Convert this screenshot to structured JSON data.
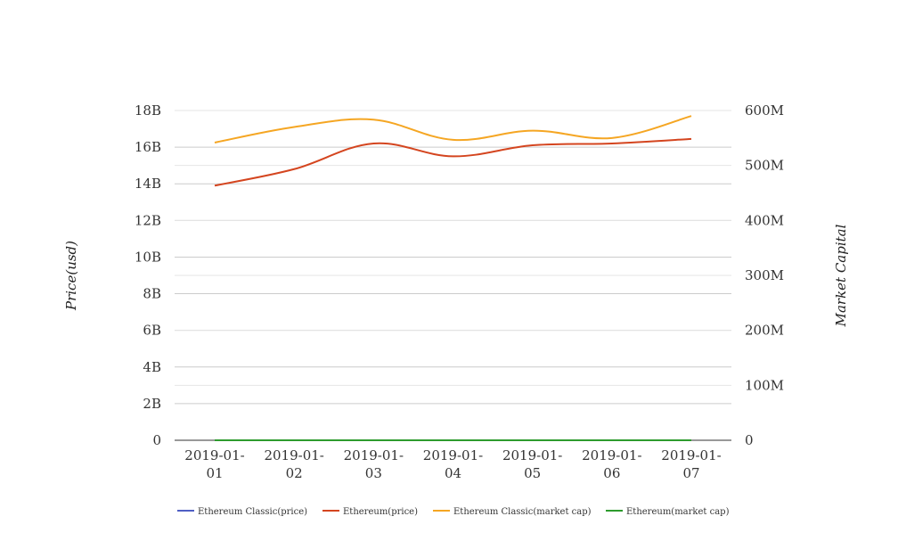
{
  "chart_data": {
    "type": "line",
    "categories": [
      "2019-01-01",
      "2019-01-02",
      "2019-01-03",
      "2019-01-04",
      "2019-01-05",
      "2019-01-06",
      "2019-01-07"
    ],
    "category_lines": [
      [
        "2019-01-",
        "01"
      ],
      [
        "2019-01-",
        "02"
      ],
      [
        "2019-01-",
        "03"
      ],
      [
        "2019-01-",
        "04"
      ],
      [
        "2019-01-",
        "05"
      ],
      [
        "2019-01-",
        "06"
      ],
      [
        "2019-01-",
        "07"
      ]
    ],
    "left_axis": {
      "label": "Price(usd)",
      "ticks": [
        "0",
        "2B",
        "4B",
        "6B",
        "8B",
        "10B",
        "12B",
        "14B",
        "16B",
        "18B"
      ],
      "ylim": [
        0,
        18000000000
      ]
    },
    "right_axis": {
      "label": "Market Capital",
      "ticks": [
        "0",
        "100M",
        "200M",
        "300M",
        "400M",
        "500M",
        "600M"
      ],
      "ylim": [
        0,
        600000000
      ]
    },
    "series": [
      {
        "name": "Ethereum Classic(price)",
        "axis": "right",
        "color": "#4f5fc4",
        "values": [
          5.2,
          5.5,
          5.1,
          4.6,
          4.9,
          4.8,
          5.0
        ]
      },
      {
        "name": "Ethereum(price)",
        "axis": "left",
        "color": "#d4451f",
        "values": [
          13900000000,
          14800000000,
          16200000000,
          15500000000,
          16100000000,
          16200000000,
          16450000000
        ]
      },
      {
        "name": "Ethereum Classic(market cap)",
        "axis": "left",
        "color": "#f5a623",
        "values": [
          16250000000,
          17100000000,
          17500000000,
          16400000000,
          16900000000,
          16500000000,
          17700000000
        ]
      },
      {
        "name": "Ethereum(market cap)",
        "axis": "right",
        "color": "#2e9b2e",
        "values": [
          150,
          160,
          155,
          152,
          158,
          157,
          154
        ]
      }
    ],
    "grid": true,
    "legend_position": "bottom"
  }
}
